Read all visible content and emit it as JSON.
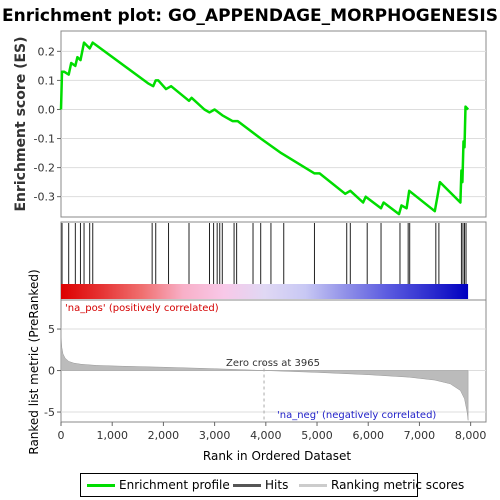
{
  "chart_data": {
    "type": "line",
    "title": "Enrichment plot: GO_APPENDAGE_MORPHOGENESIS",
    "es_panel": {
      "ylabel": "Enrichment score (ES)",
      "ylim": [
        -0.37,
        0.27
      ],
      "yticks": [
        -0.3,
        -0.2,
        -0.1,
        0.0,
        0.1,
        0.2
      ],
      "ytick_labels": [
        "-0.3",
        "-0.2",
        "-0.1",
        "0.0",
        "0.1",
        "0.2"
      ],
      "series": [
        {
          "name": "Enrichment profile",
          "color": "#00dd00",
          "x": [
            0,
            20,
            60,
            150,
            200,
            280,
            320,
            380,
            450,
            560,
            620,
            1700,
            1800,
            1850,
            1900,
            2050,
            2150,
            2500,
            2550,
            2800,
            2900,
            3000,
            3150,
            3350,
            3450,
            3900,
            4300,
            4950,
            5050,
            5550,
            5650,
            5900,
            5950,
            6250,
            6300,
            6600,
            6650,
            6750,
            6800,
            7300,
            7350,
            7400,
            7800,
            7820,
            7840,
            7860,
            7870,
            7880,
            7900,
            7950
          ],
          "y": [
            0.0,
            0.13,
            0.13,
            0.12,
            0.16,
            0.15,
            0.18,
            0.17,
            0.23,
            0.21,
            0.23,
            0.09,
            0.08,
            0.1,
            0.1,
            0.07,
            0.08,
            0.03,
            0.04,
            0.0,
            -0.01,
            0.0,
            -0.02,
            -0.04,
            -0.04,
            -0.1,
            -0.15,
            -0.22,
            -0.22,
            -0.29,
            -0.28,
            -0.32,
            -0.3,
            -0.34,
            -0.32,
            -0.36,
            -0.33,
            -0.34,
            -0.28,
            -0.35,
            -0.3,
            -0.25,
            -0.32,
            -0.21,
            -0.25,
            -0.11,
            -0.13,
            -0.13,
            0.01,
            0.0
          ]
        }
      ]
    },
    "hits": [
      20,
      150,
      280,
      380,
      450,
      560,
      620,
      1780,
      1850,
      2100,
      2500,
      2900,
      2980,
      3050,
      3100,
      3150,
      3380,
      3430,
      3750,
      3900,
      4100,
      4350,
      4950,
      5580,
      5650,
      5980,
      6250,
      6620,
      6780,
      6810,
      7320,
      7380,
      7820,
      7850,
      7880,
      7910
    ],
    "colorbar_stops": [
      "#dd0000",
      "#e63434",
      "#f07070",
      "#f8b0c8",
      "#f8c8e8",
      "#e0d8f4",
      "#c8c8f4",
      "#9090e8",
      "#5c5ce0",
      "#3030d0",
      "#0000c0"
    ],
    "metric_panel": {
      "ylabel": "Ranked list metric (PreRanked)",
      "ylim": [
        -6.2,
        8.5
      ],
      "yticks": [
        -5,
        0,
        5
      ],
      "ytick_labels": [
        "-5",
        "0",
        "5"
      ],
      "profile_x": [
        0,
        5,
        15,
        40,
        80,
        150,
        250,
        400,
        700,
        1200,
        2000,
        3000,
        3965,
        5000,
        6000,
        6800,
        7300,
        7600,
        7800,
        7880,
        7930,
        7950
      ],
      "profile_y": [
        5.2,
        3.8,
        2.8,
        2.0,
        1.5,
        1.1,
        0.9,
        0.75,
        0.62,
        0.52,
        0.4,
        0.22,
        0.0,
        -0.22,
        -0.5,
        -0.8,
        -1.15,
        -1.6,
        -2.4,
        -3.4,
        -5.0,
        -6.0
      ]
    },
    "xlabel": "Rank in Ordered Dataset",
    "xlim": [
      0,
      8300
    ],
    "xticks": [
      0,
      1000,
      2000,
      3000,
      4000,
      5000,
      6000,
      7000,
      8000
    ],
    "xtick_labels": [
      "0",
      "1,000",
      "2,000",
      "3,000",
      "4,000",
      "5,000",
      "6,000",
      "7,000",
      "8,000"
    ],
    "dataset_size": 7950,
    "zero_cross": 3965,
    "annotations": {
      "pos": "'na_pos' (positively correlated)",
      "neg": "'na_neg' (negatively correlated)",
      "zero": "Zero cross at 3965"
    },
    "legend": [
      {
        "label": "Enrichment profile",
        "color": "#00dd00"
      },
      {
        "label": "Hits",
        "color": "#555555"
      },
      {
        "label": "Ranking metric scores",
        "color": "#cccccc"
      }
    ]
  }
}
